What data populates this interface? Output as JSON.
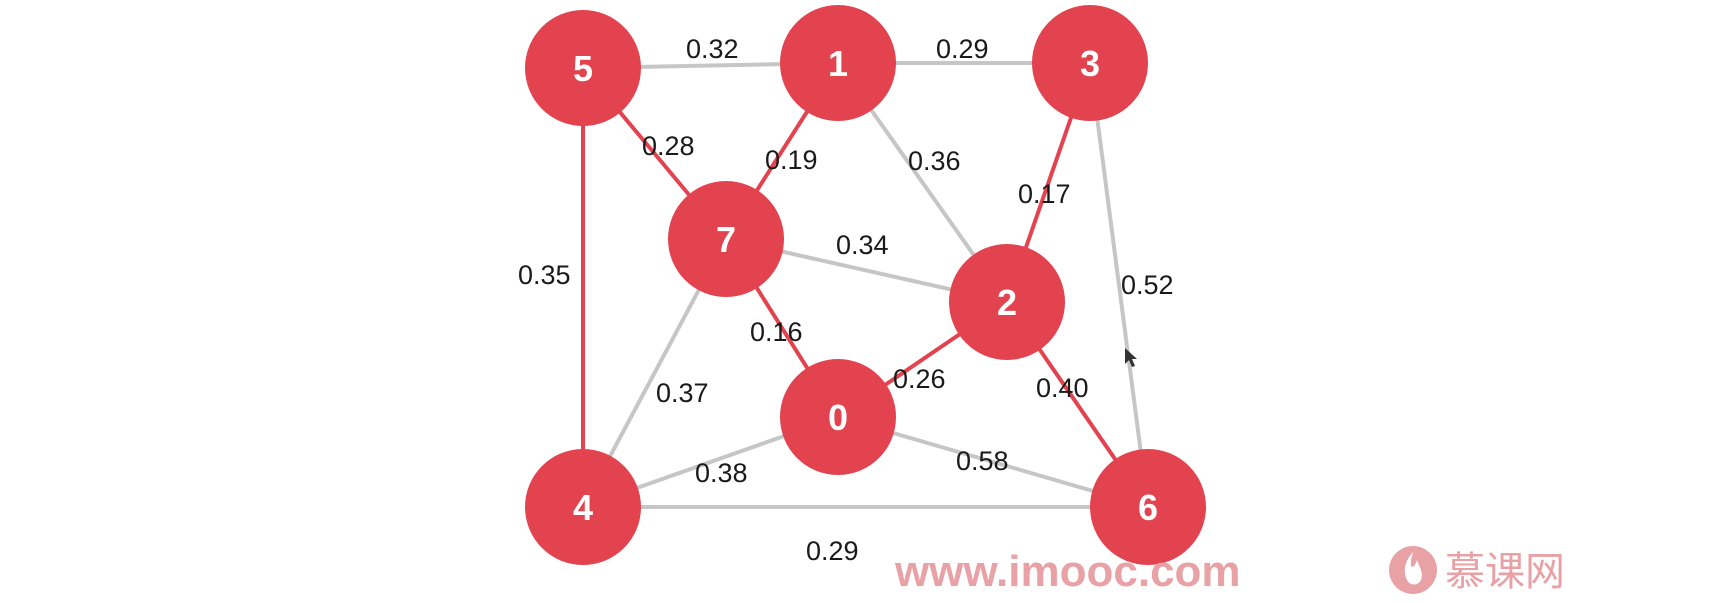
{
  "graph": {
    "colors": {
      "node_fill": "#e2434f",
      "edge_highlight": "#e2434f",
      "edge_default": "#c6c6c6",
      "node_label": "#ffffff",
      "watermark": "#e8a1a5"
    },
    "nodes": [
      {
        "id": "0",
        "label": "0"
      },
      {
        "id": "1",
        "label": "1"
      },
      {
        "id": "2",
        "label": "2"
      },
      {
        "id": "3",
        "label": "3"
      },
      {
        "id": "4",
        "label": "4"
      },
      {
        "id": "5",
        "label": "5"
      },
      {
        "id": "6",
        "label": "6"
      },
      {
        "id": "7",
        "label": "7"
      }
    ],
    "edges": [
      {
        "from": "5",
        "to": "1",
        "weight": "0.32",
        "highlighted": false
      },
      {
        "from": "1",
        "to": "3",
        "weight": "0.29",
        "highlighted": false
      },
      {
        "from": "5",
        "to": "7",
        "weight": "0.28",
        "highlighted": true
      },
      {
        "from": "1",
        "to": "7",
        "weight": "0.19",
        "highlighted": true
      },
      {
        "from": "1",
        "to": "2",
        "weight": "0.36",
        "highlighted": false
      },
      {
        "from": "3",
        "to": "2",
        "weight": "0.17",
        "highlighted": true
      },
      {
        "from": "5",
        "to": "4",
        "weight": "0.35",
        "highlighted": true
      },
      {
        "from": "7",
        "to": "2",
        "weight": "0.34",
        "highlighted": false
      },
      {
        "from": "3",
        "to": "6",
        "weight": "0.52",
        "highlighted": false
      },
      {
        "from": "7",
        "to": "0",
        "weight": "0.16",
        "highlighted": true
      },
      {
        "from": "0",
        "to": "2",
        "weight": "0.26",
        "highlighted": true
      },
      {
        "from": "2",
        "to": "6",
        "weight": "0.40",
        "highlighted": true
      },
      {
        "from": "7",
        "to": "4",
        "weight": "0.37",
        "highlighted": false
      },
      {
        "from": "4",
        "to": "0",
        "weight": "0.38",
        "highlighted": false
      },
      {
        "from": "0",
        "to": "6",
        "weight": "0.58",
        "highlighted": false
      },
      {
        "from": "4",
        "to": "6",
        "weight": "0.29",
        "highlighted": false
      }
    ]
  },
  "watermark": {
    "url": "www.imooc.com",
    "brand": "慕课网"
  }
}
